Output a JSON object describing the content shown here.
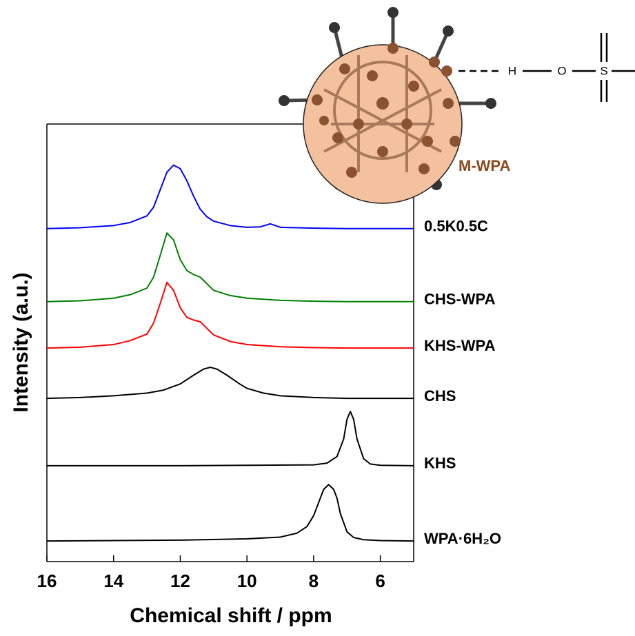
{
  "chart_data": {
    "type": "line",
    "x_label": "Chemical shift / ppm",
    "y_label": "Intensity (a.u.)",
    "xlim": [
      16,
      5
    ],
    "xticks": [
      16,
      14,
      12,
      10,
      8,
      6
    ],
    "ylim": [
      0,
      100
    ],
    "annotations": [
      "M-WPA"
    ],
    "structure_labels": [
      "H",
      "O",
      "S"
    ],
    "series": [
      {
        "name": "0.5K0.5C",
        "color": "#0000ff",
        "x": [
          16,
          15,
          14,
          13.5,
          13,
          12.8,
          12.6,
          12.4,
          12.2,
          12,
          11.8,
          11.6,
          11.4,
          11.2,
          11,
          10.5,
          10,
          9.6,
          9.3,
          9,
          8,
          7,
          6,
          5
        ],
        "values": [
          76.1,
          76.3,
          76.8,
          77.5,
          79,
          81,
          85,
          89,
          90.6,
          89.8,
          87,
          83.5,
          80.5,
          78.8,
          77.8,
          76.8,
          76.4,
          76.5,
          77.2,
          76.4,
          76.2,
          76.1,
          76.1,
          76.1
        ]
      },
      {
        "name": "CHS-WPA",
        "color": "#008000",
        "x": [
          16,
          15,
          14,
          13.5,
          13,
          12.8,
          12.6,
          12.4,
          12.2,
          12,
          11.8,
          11.6,
          11.4,
          11.2,
          11,
          10.5,
          10,
          9,
          8,
          7,
          6,
          5
        ],
        "values": [
          59.4,
          59.6,
          60.2,
          61,
          62.5,
          65,
          70,
          75.1,
          73.5,
          69,
          66.5,
          65.6,
          65,
          63.5,
          62,
          60.8,
          60.2,
          59.7,
          59.5,
          59.4,
          59.4,
          59.4
        ]
      },
      {
        "name": "KHS-WPA",
        "color": "#ff0000",
        "x": [
          16,
          15,
          14,
          13.5,
          13,
          12.8,
          12.6,
          12.4,
          12.2,
          12,
          11.8,
          11.6,
          11.4,
          11.2,
          11,
          10.5,
          10,
          9,
          8,
          7,
          6,
          5
        ],
        "values": [
          48.8,
          49,
          49.6,
          50.5,
          52,
          54.5,
          59,
          63.8,
          62,
          58,
          55.8,
          55.2,
          54.8,
          53.3,
          51.8,
          50.3,
          49.6,
          49.1,
          48.9,
          48.8,
          48.8,
          48.8
        ]
      },
      {
        "name": "CHS",
        "color": "#000000",
        "x": [
          16,
          15,
          14,
          13,
          12.5,
          12,
          11.6,
          11.3,
          11.1,
          10.9,
          10.6,
          10.2,
          10,
          9.5,
          9,
          8,
          7,
          6,
          5
        ],
        "values": [
          37.3,
          37.5,
          37.9,
          38.5,
          39.2,
          40.6,
          42.6,
          44,
          44.4,
          44,
          42.6,
          40.5,
          39.6,
          38.5,
          37.9,
          37.5,
          37.3,
          37.3,
          37.3
        ]
      },
      {
        "name": "KHS",
        "color": "#000000",
        "x": [
          16,
          12,
          10,
          8,
          7.6,
          7.3,
          7.1,
          7,
          6.9,
          6.8,
          6.7,
          6.5,
          6.3,
          6,
          5
        ],
        "values": [
          21.9,
          21.9,
          22,
          22.1,
          22.5,
          24,
          28,
          32.5,
          34.3,
          32.5,
          28,
          23.5,
          22.3,
          22,
          21.9
        ]
      },
      {
        "name": "WPA·6H₂O",
        "color": "#000000",
        "x": [
          16,
          12,
          10,
          9,
          8.5,
          8.2,
          8,
          7.8,
          7.7,
          7.55,
          7.4,
          7.3,
          7.2,
          7,
          6.8,
          6.5,
          6,
          5
        ],
        "values": [
          4.7,
          4.9,
          5.2,
          5.6,
          6.5,
          8,
          10.5,
          14.5,
          16.5,
          17.6,
          16.5,
          14.5,
          11,
          6.8,
          5.5,
          5,
          4.8,
          4.7
        ]
      }
    ]
  }
}
